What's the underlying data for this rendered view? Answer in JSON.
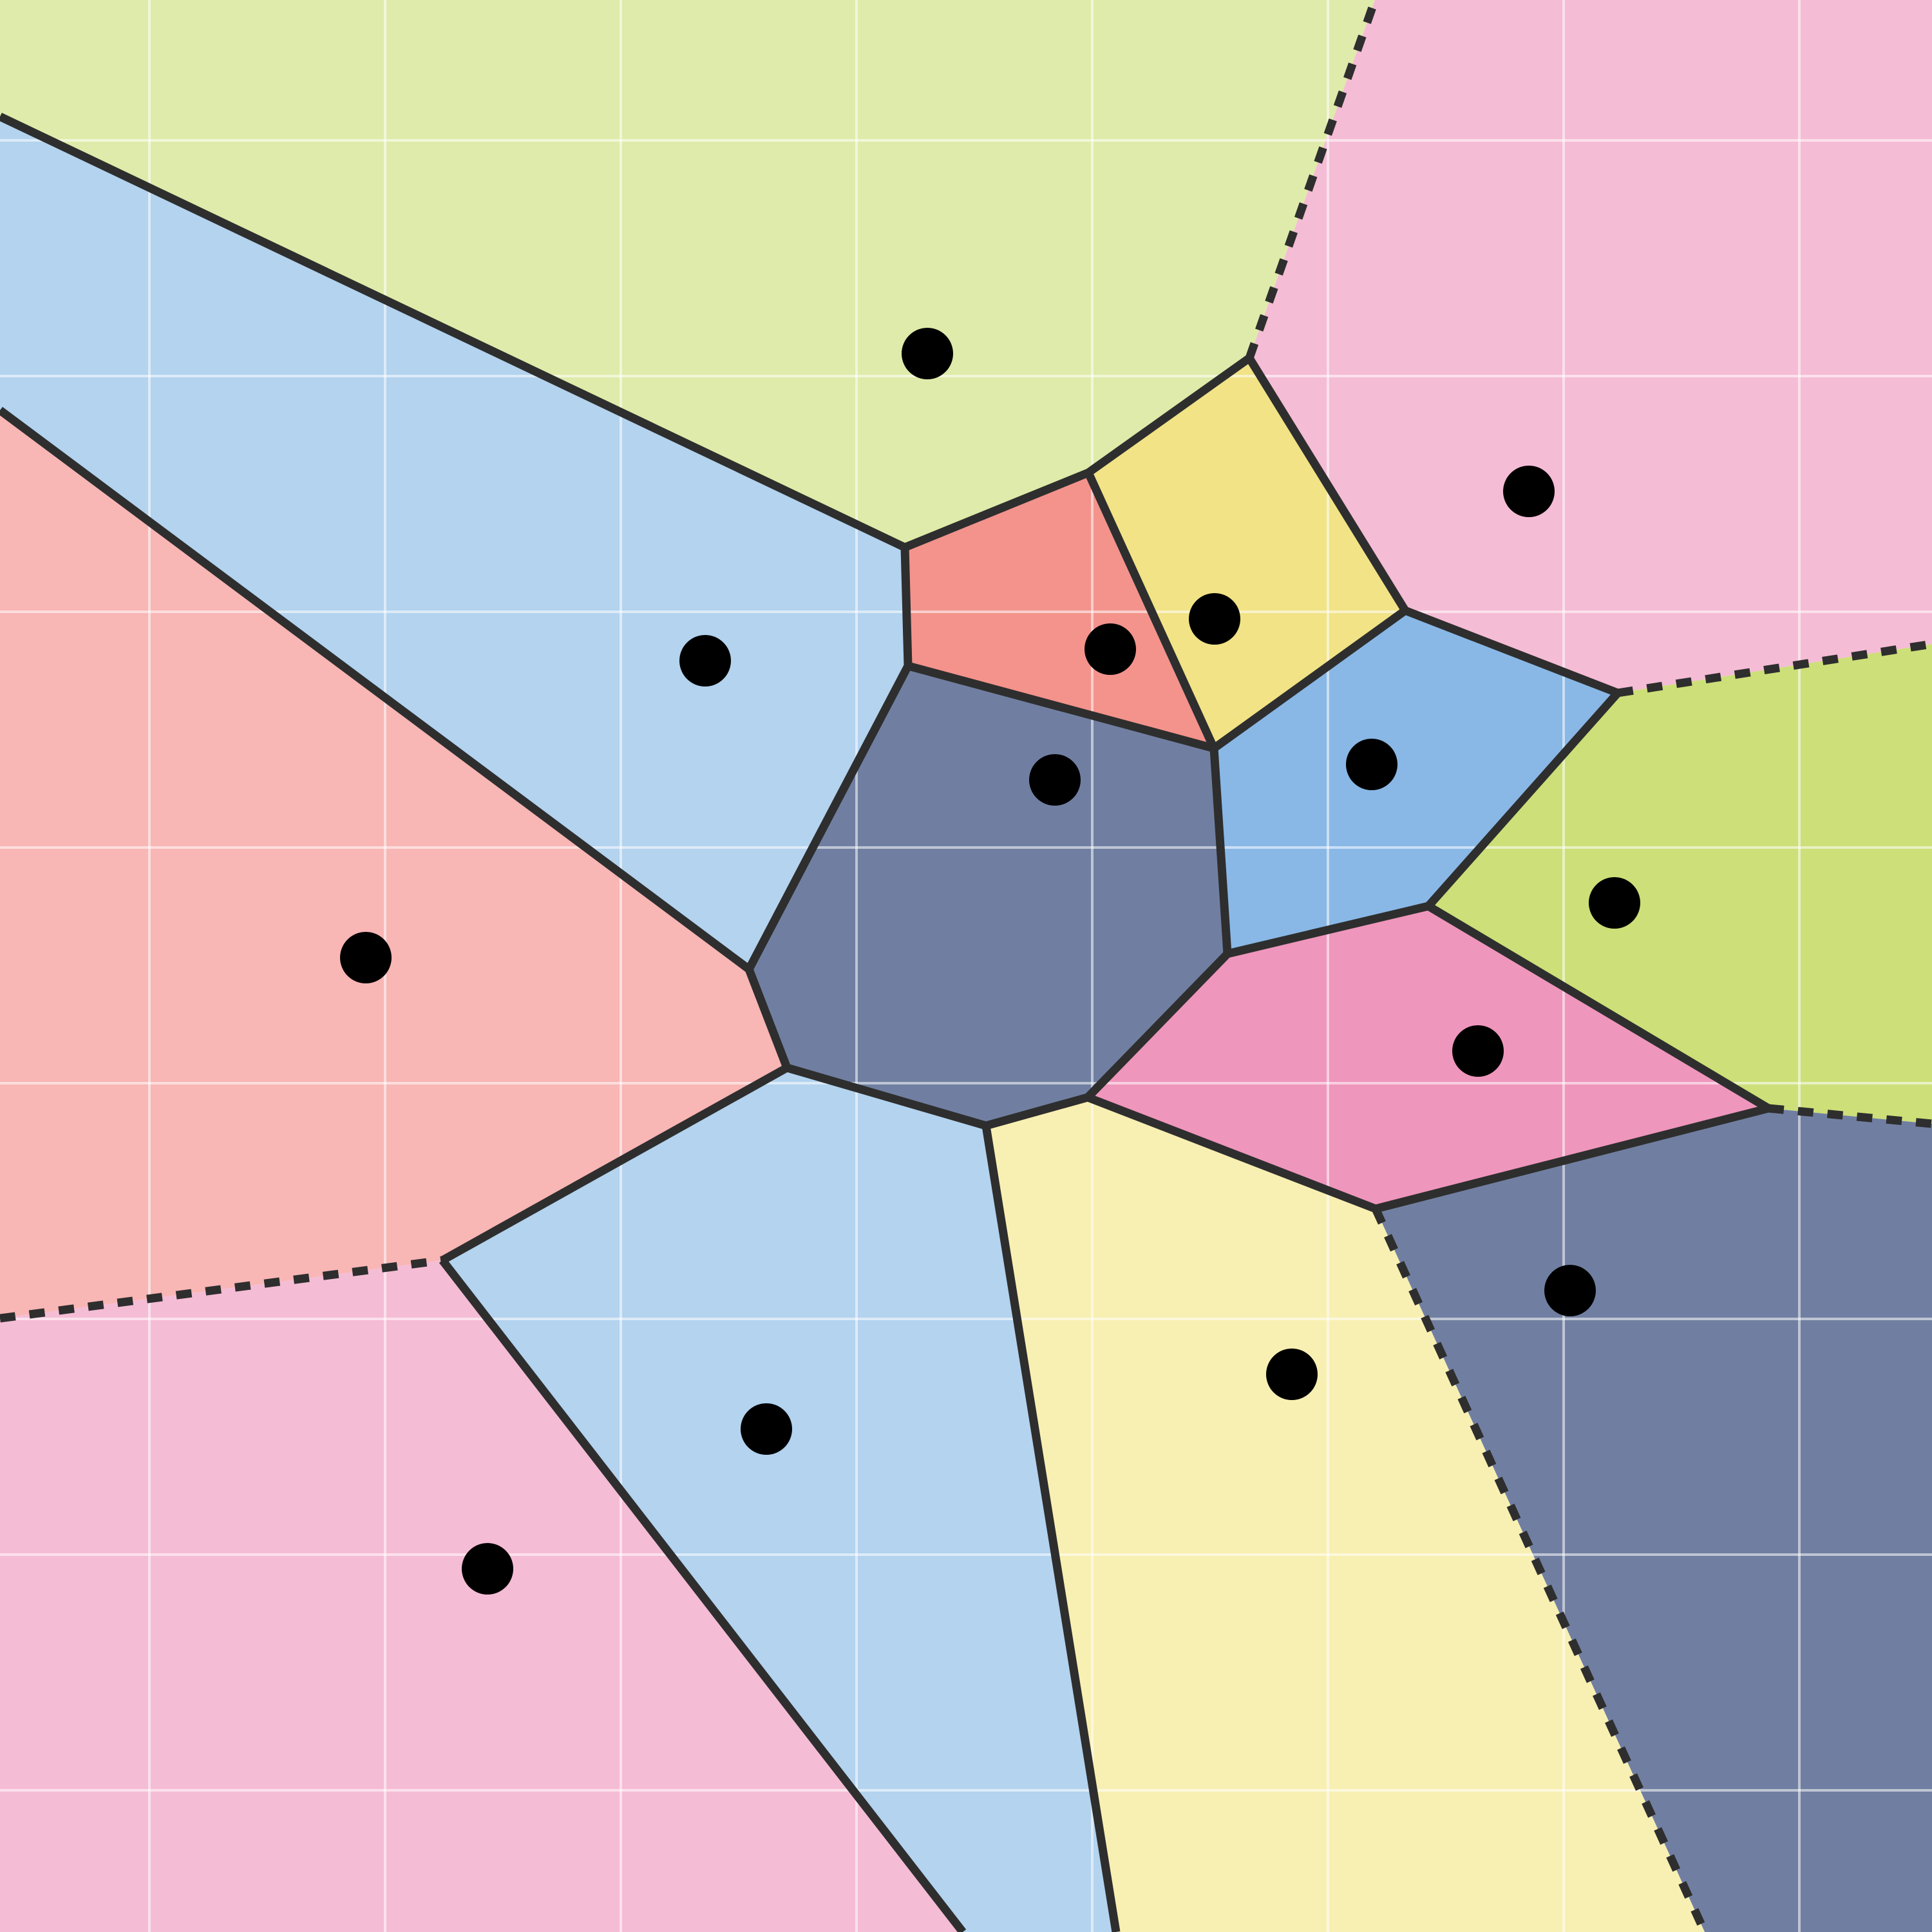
{
  "diagram": {
    "colors": {
      "background": "#ffffff",
      "edge": "#2e2e2e",
      "site": "#000000",
      "grid": "#ffffff"
    },
    "cells": [
      {
        "id": "top-center",
        "color": "#dfebaa"
      },
      {
        "id": "top-right",
        "color": "#f5bcd5"
      },
      {
        "id": "upper-left",
        "color": "#b3d3ef"
      },
      {
        "id": "left",
        "color": "#f8b6b5"
      },
      {
        "id": "center-red",
        "color": "#f3938c"
      },
      {
        "id": "center-yellow",
        "color": "#f1e386"
      },
      {
        "id": "center-navy",
        "color": "#707fa1"
      },
      {
        "id": "center-blue",
        "color": "#89b8e6"
      },
      {
        "id": "right-green",
        "color": "#cddf78"
      },
      {
        "id": "center-pink",
        "color": "#ef96bc"
      },
      {
        "id": "bottom-right-navy",
        "color": "#707fa1"
      },
      {
        "id": "bottom-yellow",
        "color": "#f8efb2"
      },
      {
        "id": "bottom-blue",
        "color": "#b3d3ef"
      },
      {
        "id": "bottom-left-pink",
        "color": "#f5bcd5"
      }
    ],
    "edge_styles": [
      "solid",
      "dashed"
    ]
  }
}
